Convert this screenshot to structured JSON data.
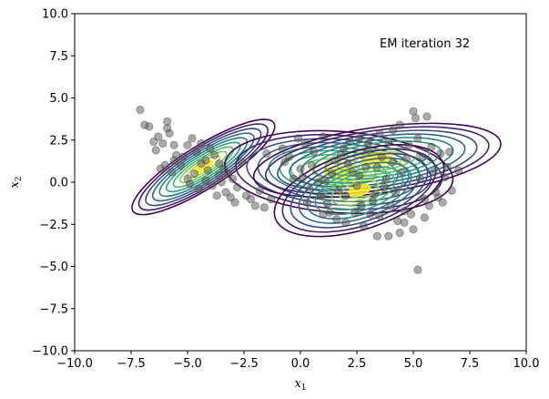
{
  "chart_data": {
    "type": "scatter",
    "title": "",
    "annotation": "EM iteration 32",
    "xlabel": {
      "base": "x",
      "sub": "1"
    },
    "ylabel": {
      "base": "x",
      "sub": "2"
    },
    "xlim": [
      -10,
      10
    ],
    "ylim": [
      -10,
      10
    ],
    "xticks": [
      "−10.0",
      "−7.5",
      "−5.0",
      "−2.5",
      "0.0",
      "2.5",
      "5.0",
      "7.5",
      "10.0"
    ],
    "yticks": [
      "−10.0",
      "−7.5",
      "−5.0",
      "−2.5",
      "0.0",
      "2.5",
      "5.0",
      "7.5",
      "10.0"
    ],
    "grid": false,
    "point_color": "#555555",
    "contour_colormap": [
      "#440154",
      "#3b528b",
      "#21918c",
      "#5ec962",
      "#fde725"
    ],
    "points": [
      [
        -7.1,
        4.3
      ],
      [
        -6.9,
        3.4
      ],
      [
        -6.7,
        3.3
      ],
      [
        -6.5,
        2.4
      ],
      [
        -6.3,
        2.7
      ],
      [
        -6.1,
        2.3
      ],
      [
        -6.4,
        1.9
      ],
      [
        -5.9,
        3.6
      ],
      [
        -5.9,
        3.2
      ],
      [
        -5.8,
        2.9
      ],
      [
        -5.6,
        2.2
      ],
      [
        -5.5,
        1.6
      ],
      [
        -5.2,
        1.5
      ],
      [
        -5.0,
        2.2
      ],
      [
        -4.8,
        2.6
      ],
      [
        -4.6,
        1.8
      ],
      [
        -4.4,
        2.3
      ],
      [
        -4.2,
        1.3
      ],
      [
        -4.0,
        2.0
      ],
      [
        -3.8,
        1.6
      ],
      [
        -3.6,
        1.1
      ],
      [
        -3.4,
        0.8
      ],
      [
        -3.2,
        0.5
      ],
      [
        -3.0,
        0.2
      ],
      [
        -2.8,
        -0.3
      ],
      [
        -2.6,
        1.2
      ],
      [
        -2.4,
        -0.8
      ],
      [
        -2.2,
        -1.0
      ],
      [
        -2.0,
        -1.4
      ],
      [
        -1.8,
        -0.5
      ],
      [
        -1.6,
        -1.5
      ],
      [
        -1.5,
        1.7
      ],
      [
        -1.3,
        -1.0
      ],
      [
        -6.2,
        0.8
      ],
      [
        -5.7,
        0.6
      ],
      [
        -5.3,
        1.0
      ],
      [
        -5.0,
        0.2
      ],
      [
        -4.7,
        0.5
      ],
      [
        -4.5,
        -0.4
      ],
      [
        -4.2,
        0.1
      ],
      [
        -3.9,
        -0.2
      ],
      [
        -3.7,
        -0.8
      ],
      [
        -3.5,
        0.0
      ],
      [
        -3.3,
        -0.6
      ],
      [
        -3.1,
        -0.9
      ],
      [
        -2.9,
        -1.2
      ],
      [
        -4.9,
        -0.1
      ],
      [
        -5.6,
        1.3
      ],
      [
        -6.0,
        1.0
      ],
      [
        -4.1,
        0.7
      ],
      [
        -3.6,
        0.4
      ],
      [
        -4.4,
        1.1
      ],
      [
        -0.8,
        2.0
      ],
      [
        -0.7,
        1.2
      ],
      [
        -0.3,
        0.2
      ],
      [
        -0.1,
        2.6
      ],
      [
        0.0,
        0.8
      ],
      [
        0.2,
        2.3
      ],
      [
        0.4,
        -0.4
      ],
      [
        0.6,
        1.8
      ],
      [
        0.8,
        0.0
      ],
      [
        1.0,
        2.7
      ],
      [
        1.2,
        -1.3
      ],
      [
        1.4,
        0.5
      ],
      [
        1.6,
        -2.2
      ],
      [
        1.8,
        1.6
      ],
      [
        2.0,
        -0.8
      ],
      [
        2.2,
        2.4
      ],
      [
        2.4,
        -1.8
      ],
      [
        2.6,
        0.4
      ],
      [
        2.8,
        -2.6
      ],
      [
        3.0,
        1.9
      ],
      [
        3.2,
        -1.1
      ],
      [
        3.4,
        -3.2
      ],
      [
        3.5,
        2.9
      ],
      [
        3.7,
        -0.3
      ],
      [
        3.9,
        -3.2
      ],
      [
        4.1,
        1.2
      ],
      [
        4.3,
        -2.3
      ],
      [
        4.4,
        3.4
      ],
      [
        4.6,
        -1.7
      ],
      [
        4.8,
        2.2
      ],
      [
        5.0,
        -2.8
      ],
      [
        5.0,
        4.2
      ],
      [
        5.1,
        3.8
      ],
      [
        5.2,
        -5.2
      ],
      [
        5.4,
        1.5
      ],
      [
        5.5,
        -1.0
      ],
      [
        5.6,
        3.9
      ],
      [
        5.8,
        2.1
      ],
      [
        6.0,
        -0.6
      ],
      [
        6.2,
        1.7
      ],
      [
        6.4,
        0.3
      ],
      [
        6.6,
        1.8
      ],
      [
        6.7,
        -0.5
      ],
      [
        7.0,
        0.7
      ],
      [
        0.5,
        1.0
      ],
      [
        1.1,
        0.1
      ],
      [
        1.7,
        -0.5
      ],
      [
        2.1,
        1.1
      ],
      [
        2.5,
        -0.2
      ],
      [
        2.9,
        0.9
      ],
      [
        3.3,
        -0.7
      ],
      [
        3.6,
        1.5
      ],
      [
        4.0,
        -1.4
      ],
      [
        4.5,
        0.6
      ],
      [
        4.9,
        -1.9
      ],
      [
        5.3,
        0.2
      ],
      [
        5.7,
        -1.4
      ],
      [
        6.1,
        -0.9
      ],
      [
        0.9,
        -0.8
      ],
      [
        1.5,
        1.3
      ],
      [
        2.3,
        0.6
      ],
      [
        3.1,
        -1.9
      ],
      [
        3.8,
        0.2
      ],
      [
        4.2,
        -0.6
      ],
      [
        4.7,
        1.4
      ],
      [
        5.9,
        0.6
      ],
      [
        0.3,
        -1.2
      ],
      [
        1.3,
        -1.8
      ],
      [
        2.7,
        -1.4
      ],
      [
        3.5,
        -2.0
      ],
      [
        4.6,
        -2.4
      ],
      [
        5.5,
        -2.1
      ],
      [
        6.3,
        -1.2
      ],
      [
        -0.5,
        1.5
      ],
      [
        0.1,
        0.3
      ],
      [
        1.9,
        2.0
      ],
      [
        2.6,
        2.6
      ],
      [
        3.9,
        2.4
      ],
      [
        5.2,
        2.6
      ],
      [
        6.5,
        0.9
      ],
      [
        4.1,
        3.1
      ],
      [
        2.0,
        -2.4
      ],
      [
        1.0,
        -1.9
      ],
      [
        3.0,
        2.3
      ],
      [
        4.4,
        -3.0
      ],
      [
        3.4,
        0.9
      ]
    ],
    "components": [
      {
        "mean": [
          -4.3,
          0.9
        ],
        "std": [
          1.6,
          0.55
        ],
        "angle_deg": -32
      },
      {
        "mean": [
          1.7,
          0.6
        ],
        "std": [
          2.2,
          1.05
        ],
        "angle_deg": 4
      },
      {
        "mean": [
          3.4,
          1.3
        ],
        "std": [
          2.4,
          0.85
        ],
        "angle_deg": -8
      },
      {
        "mean": [
          2.6,
          -0.5
        ],
        "std": [
          1.7,
          1.0
        ],
        "angle_deg": -18
      }
    ]
  }
}
